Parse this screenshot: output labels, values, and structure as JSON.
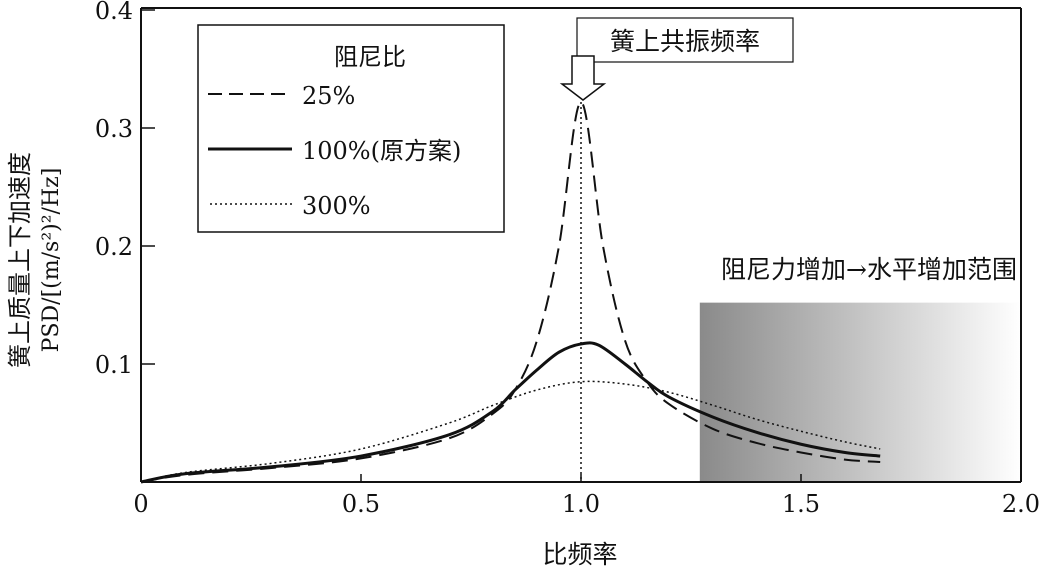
{
  "chart_data": {
    "type": "line",
    "title": "",
    "xlabel": "比频率",
    "ylabel_line1": "簧上质量上下加速度",
    "ylabel_line2": "PSD/[(m/s²)²/Hz]",
    "xlim": [
      0,
      2.0
    ],
    "ylim": [
      0,
      0.4
    ],
    "xticks": [
      "0",
      "0.5",
      "1.0",
      "1.5",
      "2.0"
    ],
    "xtick_values": [
      0,
      0.5,
      1.0,
      1.5,
      2.0
    ],
    "yticks": [
      "0.1",
      "0.2",
      "0.3",
      "0.4"
    ],
    "ytick_values": [
      0.1,
      0.2,
      0.3,
      0.4
    ],
    "grid": false,
    "legend": {
      "title": "阻尼比",
      "placement": "top-left"
    },
    "series": [
      {
        "name": "25%",
        "style": "dashed",
        "x": [
          0,
          0.1,
          0.3,
          0.5,
          0.7,
          0.8,
          0.85,
          0.9,
          0.95,
          1.0,
          1.05,
          1.1,
          1.15,
          1.2,
          1.3,
          1.4,
          1.5,
          1.6,
          1.68
        ],
        "y": [
          0,
          0.006,
          0.012,
          0.02,
          0.037,
          0.058,
          0.078,
          0.12,
          0.2,
          0.322,
          0.2,
          0.12,
          0.085,
          0.066,
          0.045,
          0.033,
          0.025,
          0.019,
          0.017
        ]
      },
      {
        "name": "100%(原方案)",
        "style": "solid",
        "x": [
          0,
          0.1,
          0.3,
          0.5,
          0.7,
          0.8,
          0.85,
          0.9,
          0.95,
          1.0,
          1.04,
          1.1,
          1.15,
          1.2,
          1.3,
          1.4,
          1.5,
          1.6,
          1.68
        ],
        "y": [
          0,
          0.007,
          0.013,
          0.022,
          0.04,
          0.06,
          0.078,
          0.095,
          0.11,
          0.117,
          0.116,
          0.1,
          0.085,
          0.072,
          0.055,
          0.042,
          0.032,
          0.025,
          0.022
        ]
      },
      {
        "name": "300%",
        "style": "dotted",
        "x": [
          0,
          0.1,
          0.3,
          0.5,
          0.7,
          0.8,
          0.9,
          1.0,
          1.1,
          1.2,
          1.3,
          1.4,
          1.5,
          1.6,
          1.68
        ],
        "y": [
          0,
          0.008,
          0.016,
          0.028,
          0.05,
          0.065,
          0.078,
          0.085,
          0.083,
          0.076,
          0.065,
          0.053,
          0.043,
          0.034,
          0.028
        ]
      }
    ],
    "annotations": [
      {
        "text": "簧上共振频率",
        "x": 1.0
      },
      {
        "text": "阻尼力增加→水平增加范围",
        "region_x": [
          1.27,
          2.0
        ],
        "region_y": [
          0,
          0.152
        ]
      }
    ]
  }
}
